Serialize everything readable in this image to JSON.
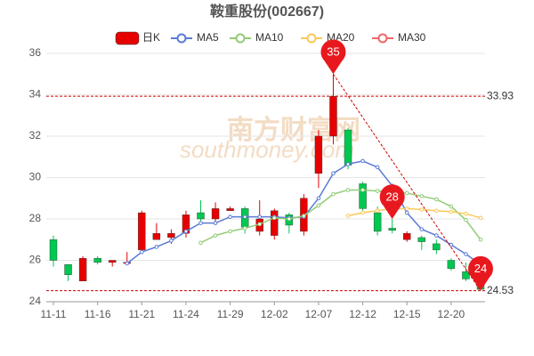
{
  "chart_data": {
    "type": "candlestick",
    "title": "鞍重股份(002667)",
    "candle_name": "日K",
    "up_color": "#e60000",
    "down_color": "#00c850",
    "categories": [
      "11-11",
      null,
      null,
      "11-16",
      null,
      null,
      "11-21",
      null,
      null,
      "11-24",
      null,
      null,
      "11-29",
      null,
      null,
      "12-02",
      null,
      null,
      "12-07",
      null,
      null,
      "12-12",
      null,
      null,
      "12-15",
      null,
      null,
      "12-20",
      null,
      null
    ],
    "open": [
      27.0,
      25.8,
      25.0,
      26.1,
      25.9,
      25.85,
      26.5,
      27.0,
      27.1,
      27.3,
      28.3,
      28.0,
      28.4,
      28.5,
      27.4,
      27.2,
      28.2,
      27.4,
      30.2,
      32.0,
      32.3,
      29.7,
      28.3,
      27.55,
      27.0,
      27.1,
      26.8,
      26.0,
      25.45,
      24.9
    ],
    "high": [
      27.2,
      25.8,
      26.2,
      26.2,
      26.0,
      26.4,
      28.4,
      27.8,
      27.5,
      28.4,
      28.9,
      28.8,
      28.6,
      28.6,
      28.9,
      28.5,
      28.3,
      29.2,
      32.3,
      35.0,
      32.4,
      29.8,
      28.6,
      28.0,
      27.4,
      27.2,
      27.0,
      26.1,
      25.9,
      25.0
    ],
    "low": [
      25.7,
      25.0,
      25.0,
      25.8,
      25.7,
      25.8,
      26.4,
      27.0,
      26.8,
      27.1,
      27.9,
      27.8,
      28.4,
      27.3,
      27.2,
      27.0,
      27.3,
      27.2,
      29.5,
      31.6,
      30.4,
      28.4,
      27.2,
      27.3,
      26.9,
      26.5,
      26.3,
      25.5,
      25.0,
      24.53
    ],
    "close": [
      26.0,
      25.3,
      26.1,
      25.9,
      26.0,
      25.9,
      28.3,
      27.3,
      27.3,
      28.2,
      28.0,
      28.5,
      28.5,
      27.6,
      28.0,
      28.4,
      27.7,
      29.0,
      32.0,
      33.93,
      30.6,
      28.5,
      27.4,
      27.45,
      27.3,
      26.9,
      26.5,
      25.6,
      25.1,
      24.6
    ],
    "series": [
      {
        "name": "MA5",
        "color": "#5b7bd5",
        "values": [
          null,
          null,
          null,
          null,
          null,
          25.85,
          26.4,
          26.65,
          26.95,
          27.4,
          27.8,
          27.8,
          28.1,
          28.1,
          28.1,
          28.1,
          28.05,
          28.1,
          29.0,
          30.2,
          30.65,
          30.8,
          30.5,
          29.6,
          28.3,
          27.5,
          27.2,
          26.75,
          26.3,
          25.8
        ]
      },
      {
        "name": "MA10",
        "color": "#91cc75",
        "values": [
          null,
          null,
          null,
          null,
          null,
          null,
          null,
          null,
          null,
          null,
          26.85,
          27.2,
          27.4,
          27.55,
          27.75,
          28.05,
          28.0,
          28.15,
          28.65,
          29.2,
          29.4,
          29.4,
          29.35,
          29.3,
          29.25,
          29.1,
          28.95,
          28.6,
          27.95,
          27.0
        ]
      },
      {
        "name": "MA20",
        "color": "#fac858",
        "values": [
          null,
          null,
          null,
          null,
          null,
          null,
          null,
          null,
          null,
          null,
          null,
          null,
          null,
          null,
          null,
          null,
          null,
          null,
          null,
          null,
          28.15,
          28.3,
          28.4,
          28.5,
          28.5,
          28.45,
          28.4,
          28.35,
          28.25,
          28.05
        ]
      },
      {
        "name": "MA30",
        "color": "#ee6666",
        "values": [
          null,
          null,
          null,
          null,
          null,
          null,
          null,
          null,
          null,
          null,
          null,
          null,
          null,
          null,
          null,
          null,
          null,
          null,
          null,
          null,
          null,
          null,
          null,
          null,
          null,
          null,
          null,
          null,
          null,
          null
        ]
      }
    ],
    "ylim": [
      24,
      36
    ],
    "yticks": [
      24,
      26,
      28,
      30,
      32,
      34,
      36
    ],
    "grid": true,
    "hlines": [
      {
        "value": 33.93,
        "label": "33.93"
      },
      {
        "value": 24.53,
        "label": "24.53"
      }
    ],
    "markers": [
      {
        "label": "35",
        "value": 35,
        "kind": "high"
      },
      {
        "label": "28",
        "value": 28,
        "kind": "high"
      },
      {
        "label": "24",
        "value": 24,
        "kind": "low"
      }
    ],
    "watermark": {
      "cn": "南方财富网",
      "en": "southmoney.com"
    }
  }
}
